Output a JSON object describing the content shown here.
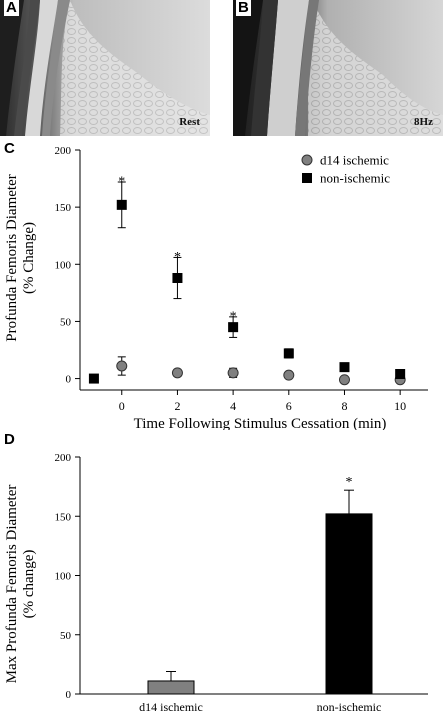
{
  "panels": {
    "a": {
      "label": "A",
      "caption": "Rest"
    },
    "b": {
      "label": "B",
      "caption": "8Hz"
    },
    "c": {
      "label": "C"
    },
    "d": {
      "label": "D"
    }
  },
  "colors": {
    "ischemic": "#808080",
    "nonischemic": "#000000"
  },
  "chart_data": [
    {
      "type": "scatter",
      "xlabel": "Time Following Stimulus Cessation (min)",
      "ylabel_line1": "Profunda Femoris Diameter",
      "ylabel_line2": "(% Change)",
      "xlim": [
        -1.5,
        11
      ],
      "ylim": [
        -10,
        200
      ],
      "xticks": [
        0,
        2,
        4,
        6,
        8,
        10
      ],
      "yticks": [
        0,
        50,
        100,
        150,
        200
      ],
      "grid": false,
      "legend": "top-right",
      "series": [
        {
          "name": "d14 ischemic",
          "marker": "circle",
          "x": [
            0,
            2,
            4,
            6,
            8,
            10
          ],
          "y": [
            11,
            5,
            5,
            3,
            -1,
            -1
          ],
          "err": [
            8,
            3,
            4,
            1,
            1,
            1
          ]
        },
        {
          "name": "non-ischemic",
          "marker": "square",
          "x": [
            -1,
            0,
            2,
            4,
            6,
            8,
            10
          ],
          "y": [
            0,
            152,
            88,
            45,
            22,
            10,
            4
          ],
          "err": [
            0,
            20,
            18,
            9,
            4,
            1,
            1
          ]
        }
      ],
      "annotations": [
        {
          "text": "*",
          "x": 0,
          "y": 174
        },
        {
          "text": "*",
          "x": 2,
          "y": 108
        },
        {
          "text": "*",
          "x": 4,
          "y": 56
        }
      ]
    },
    {
      "type": "bar",
      "ylabel_line1": "Max Profunda Femoris Diameter",
      "ylabel_line2": "(% change)",
      "categories": [
        "d14 ischemic",
        "non-ischemic"
      ],
      "values": [
        11,
        152
      ],
      "err": [
        8,
        20
      ],
      "ylim": [
        0,
        200
      ],
      "yticks": [
        0,
        50,
        100,
        150,
        200
      ],
      "annotations": [
        {
          "text": "*",
          "category": "non-ischemic"
        }
      ]
    }
  ]
}
